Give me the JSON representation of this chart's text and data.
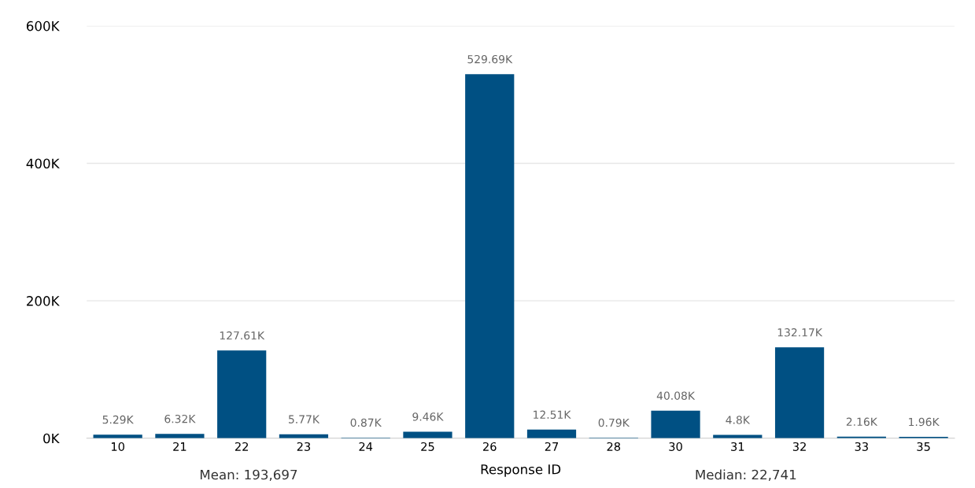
{
  "chart_data": {
    "type": "bar",
    "xlabel": "Response ID",
    "categories": [
      "10",
      "21",
      "22",
      "23",
      "24",
      "25",
      "26",
      "27",
      "28",
      "30",
      "31",
      "32",
      "33",
      "35"
    ],
    "values": [
      5290,
      6320,
      127610,
      5770,
      870,
      9460,
      529690,
      12510,
      790,
      40080,
      4800,
      132170,
      2160,
      1960
    ],
    "value_labels": [
      "5.29K",
      "6.32K",
      "127.61K",
      "5.77K",
      "0.87K",
      "9.46K",
      "529.69K",
      "12.51K",
      "0.79K",
      "40.08K",
      "4.8K",
      "132.17K",
      "2.16K",
      "1.96K"
    ],
    "color": "#005083",
    "ylim": [
      0,
      600000
    ],
    "yticks": [
      {
        "value": 0,
        "label": "0K"
      },
      {
        "value": 200000,
        "label": "200K"
      },
      {
        "value": 400000,
        "label": "400K"
      },
      {
        "value": 600000,
        "label": "600K"
      }
    ],
    "grid": "y",
    "annotations": [
      "Mean: 193,697",
      "Median: 22,741"
    ]
  }
}
